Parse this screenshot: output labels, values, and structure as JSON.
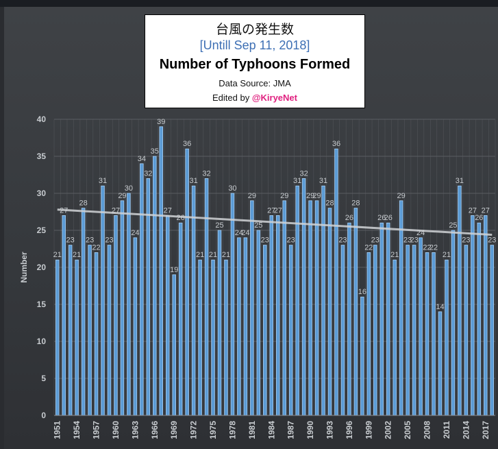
{
  "title_box": {
    "japanese_title": "台風の発生数",
    "subtitle": "[Untill Sep 11, 2018]",
    "title": "Number of Typhoons Formed",
    "source": "Data Source: JMA",
    "edited_by_prefix": "Edited by ",
    "edited_by_handle": "@KiryeNet"
  },
  "colors": {
    "bar_fill": "#5b9bd5",
    "bar_stroke": "#a9d0f5",
    "trendline": "#d0d3d6",
    "grid": "#5a5d62",
    "label": "#c8ccd0"
  },
  "chart_data": {
    "type": "bar",
    "title": "Number of Typhoons Formed",
    "ylabel": "Number",
    "xlabel": "",
    "ylim": [
      0,
      40
    ],
    "yticks": [
      0,
      5,
      10,
      15,
      20,
      25,
      30,
      35,
      40
    ],
    "grid": true,
    "legend": "none",
    "trendline": {
      "type": "linear",
      "start_value": 27.8,
      "end_value": 24.4
    },
    "categories": [
      "1951",
      "1952",
      "1953",
      "1954",
      "1955",
      "1956",
      "1957",
      "1958",
      "1959",
      "1960",
      "1961",
      "1962",
      "1963",
      "1964",
      "1965",
      "1966",
      "1967",
      "1968",
      "1969",
      "1970",
      "1971",
      "1972",
      "1973",
      "1974",
      "1975",
      "1976",
      "1977",
      "1978",
      "1979",
      "1980",
      "1981",
      "1982",
      "1983",
      "1984",
      "1985",
      "1986",
      "1987",
      "1988",
      "1989",
      "1990",
      "1991",
      "1992",
      "1993",
      "1994",
      "1995",
      "1996",
      "1997",
      "1998",
      "1999",
      "2000",
      "2001",
      "2002",
      "2003",
      "2004",
      "2005",
      "2006",
      "2007",
      "2008",
      "2009",
      "2010",
      "2011",
      "2012",
      "2013",
      "2014",
      "2015",
      "2016",
      "2017",
      "2018"
    ],
    "tick_labels_shown": [
      "1951",
      "1954",
      "1957",
      "1960",
      "1963",
      "1966",
      "1969",
      "1972",
      "1975",
      "1978",
      "1981",
      "1984",
      "1987",
      "1990",
      "1993",
      "1996",
      "1999",
      "2002",
      "2005",
      "2008",
      "2011",
      "2014",
      "2017"
    ],
    "values": [
      21,
      27,
      23,
      21,
      28,
      23,
      22,
      31,
      23,
      27,
      29,
      30,
      24,
      34,
      32,
      35,
      39,
      27,
      19,
      26,
      36,
      31,
      21,
      32,
      21,
      25,
      21,
      30,
      24,
      24,
      29,
      25,
      23,
      27,
      27,
      29,
      23,
      31,
      32,
      29,
      29,
      31,
      28,
      36,
      23,
      26,
      28,
      16,
      22,
      23,
      26,
      26,
      21,
      29,
      23,
      23,
      24,
      22,
      22,
      14,
      21,
      25,
      31,
      23,
      27,
      26,
      27,
      23
    ]
  }
}
